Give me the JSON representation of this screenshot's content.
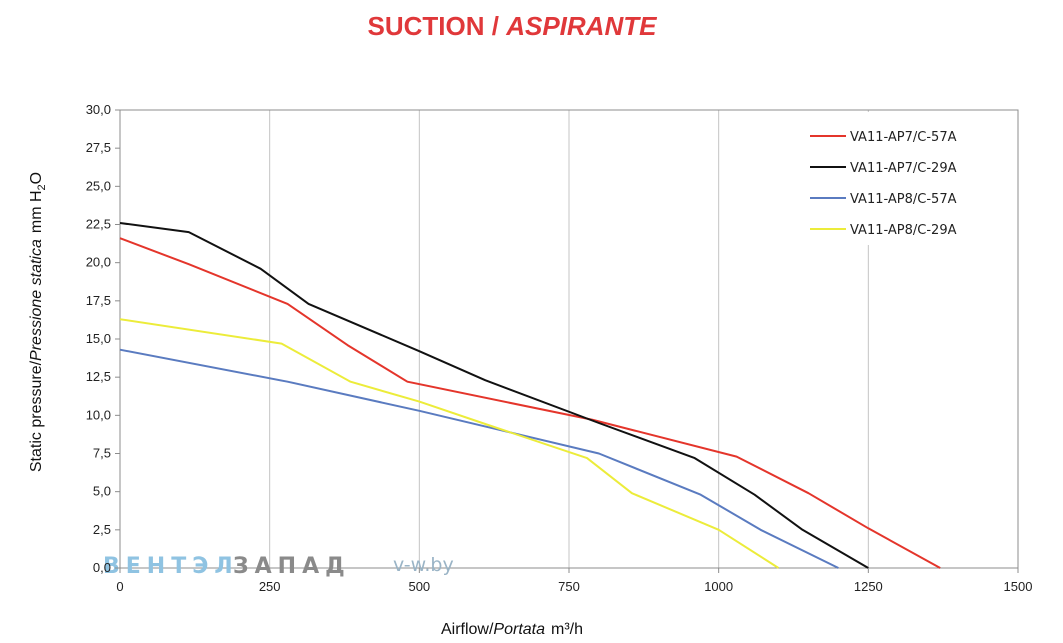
{
  "chart_data": {
    "type": "line",
    "title": "SUCTION / ASPIRANTE",
    "title_main": "SUCTION / ",
    "title_italic": "ASPIRANTE",
    "xlabel_main": "Airflow/",
    "xlabel_italic": "Portata",
    "xlabel_unit": "m³/h",
    "ylabel_main": "Static pressure/",
    "ylabel_italic": "Pressione statica",
    "ylabel_unit_pre": "mm H",
    "ylabel_unit_sub": "2",
    "ylabel_unit_post": "O",
    "xlim": [
      0,
      1500
    ],
    "ylim": [
      0,
      30
    ],
    "x_ticks": [
      0,
      250,
      500,
      750,
      1000,
      1250,
      1500
    ],
    "x_tick_labels": [
      "0",
      "250",
      "500",
      "750",
      "1000",
      "1250",
      "1500"
    ],
    "y_ticks": [
      0,
      2.5,
      5,
      7.5,
      10,
      12.5,
      15,
      17.5,
      20,
      22.5,
      25,
      27.5,
      30
    ],
    "y_tick_labels": [
      "0,0",
      "2,5",
      "5,0",
      "7,5",
      "10,0",
      "12,5",
      "15,0",
      "17,5",
      "20,0",
      "22,5",
      "25,0",
      "27,5",
      "30,0"
    ],
    "grid": "vertical",
    "legend_position": "top-right",
    "series": [
      {
        "name": "VA11-AP7/C-57A",
        "color": "#e4352b",
        "points": [
          [
            0,
            21.6
          ],
          [
            115,
            19.9
          ],
          [
            280,
            17.3
          ],
          [
            380,
            14.6
          ],
          [
            480,
            12.2
          ],
          [
            790,
            9.7
          ],
          [
            1030,
            7.3
          ],
          [
            1150,
            4.9
          ],
          [
            1250,
            2.6
          ],
          [
            1370,
            0
          ]
        ]
      },
      {
        "name": "VA11-AP7/C-29A",
        "color": "#111111",
        "points": [
          [
            0,
            22.6
          ],
          [
            115,
            22.0
          ],
          [
            235,
            19.6
          ],
          [
            315,
            17.3
          ],
          [
            500,
            14.2
          ],
          [
            610,
            12.3
          ],
          [
            800,
            9.5
          ],
          [
            960,
            7.2
          ],
          [
            1060,
            4.8
          ],
          [
            1140,
            2.5
          ],
          [
            1250,
            0
          ]
        ]
      },
      {
        "name": "VA11-AP8/C-57A",
        "color": "#5a7bc0",
        "points": [
          [
            0,
            14.3
          ],
          [
            280,
            12.2
          ],
          [
            500,
            10.3
          ],
          [
            800,
            7.5
          ],
          [
            970,
            4.8
          ],
          [
            1070,
            2.5
          ],
          [
            1200,
            0
          ]
        ]
      },
      {
        "name": "VA11-AP8/C-29A",
        "color": "#ecec3a",
        "points": [
          [
            0,
            16.3
          ],
          [
            270,
            14.7
          ],
          [
            385,
            12.2
          ],
          [
            500,
            10.9
          ],
          [
            620,
            9.3
          ],
          [
            780,
            7.2
          ],
          [
            855,
            4.9
          ],
          [
            1000,
            2.5
          ],
          [
            1100,
            0
          ]
        ]
      }
    ]
  },
  "watermark": {
    "part1": "ВЕНТЭЛ",
    "part2": "ЗАПАД",
    "site": "v-w.by"
  }
}
